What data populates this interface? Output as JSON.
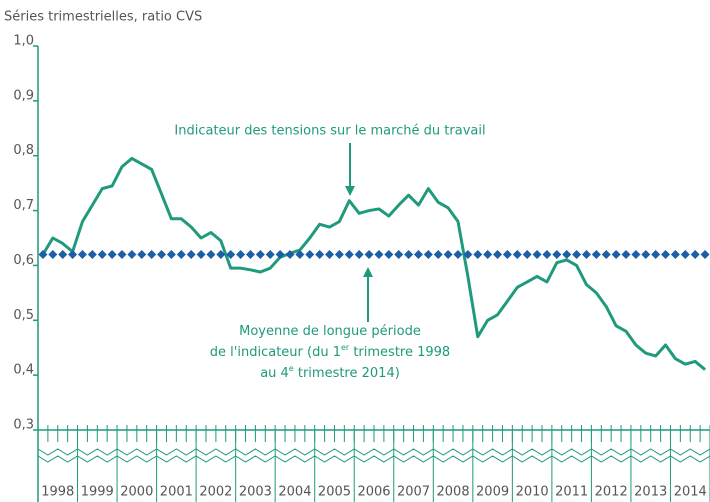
{
  "chart_data": {
    "type": "line",
    "y_axis_title": "Séries trimestrielles, ratio CVS",
    "years": [
      1998,
      1999,
      2000,
      2001,
      2002,
      2003,
      2004,
      2005,
      2006,
      2007,
      2008,
      2009,
      2010,
      2011,
      2012,
      2013,
      2014
    ],
    "ylim": [
      0.3,
      1.0
    ],
    "yticks": [
      {
        "value": 0.3,
        "label": "0,3"
      },
      {
        "value": 0.4,
        "label": "0,4"
      },
      {
        "value": 0.5,
        "label": "0,5"
      },
      {
        "value": 0.6,
        "label": "0,6"
      },
      {
        "value": 0.7,
        "label": "0,7"
      },
      {
        "value": 0.8,
        "label": "0,8"
      },
      {
        "value": 0.9,
        "label": "0,9"
      },
      {
        "value": 1.0,
        "label": "1,0"
      }
    ],
    "series": [
      {
        "style": "line",
        "color": "#1f9a7c",
        "values": [
          0.62,
          0.65,
          0.64,
          0.625,
          0.68,
          0.71,
          0.74,
          0.745,
          0.78,
          0.795,
          0.785,
          0.775,
          0.73,
          0.685,
          0.685,
          0.67,
          0.65,
          0.66,
          0.645,
          0.595,
          0.595,
          0.592,
          0.588,
          0.595,
          0.615,
          0.622,
          0.628,
          0.65,
          0.675,
          0.67,
          0.68,
          0.718,
          0.695,
          0.7,
          0.703,
          0.69,
          0.71,
          0.728,
          0.71,
          0.74,
          0.715,
          0.705,
          0.68,
          0.58,
          0.47,
          0.5,
          0.51,
          0.535,
          0.56,
          0.57,
          0.58,
          0.57,
          0.605,
          0.61,
          0.6,
          0.565,
          0.55,
          0.525,
          0.49,
          0.48,
          0.455,
          0.44,
          0.435,
          0.455,
          0.43,
          0.42,
          0.425,
          0.41
        ]
      },
      {
        "style": "diamond",
        "color": "#1d5fa6",
        "values": [
          0.62,
          0.62,
          0.62,
          0.62,
          0.62,
          0.62,
          0.62,
          0.62,
          0.62,
          0.62,
          0.62,
          0.62,
          0.62,
          0.62,
          0.62,
          0.62,
          0.62,
          0.62,
          0.62,
          0.62,
          0.62,
          0.62,
          0.62,
          0.62,
          0.62,
          0.62,
          0.62,
          0.62,
          0.62,
          0.62,
          0.62,
          0.62,
          0.62,
          0.62,
          0.62,
          0.62,
          0.62,
          0.62,
          0.62,
          0.62,
          0.62,
          0.62,
          0.62,
          0.62,
          0.62,
          0.62,
          0.62,
          0.62,
          0.62,
          0.62,
          0.62,
          0.62,
          0.62,
          0.62,
          0.62,
          0.62,
          0.62,
          0.62,
          0.62,
          0.62,
          0.62,
          0.62,
          0.62,
          0.62,
          0.62,
          0.62,
          0.62,
          0.62
        ]
      }
    ],
    "annotations": [
      {
        "text": "Indicateur des tensions sur le marché du travail"
      },
      {
        "lines": [
          [
            {
              "text": "Moyenne de longue période"
            }
          ],
          [
            {
              "text": "de l'indicateur (du 1"
            },
            {
              "sup": "er"
            },
            {
              "text": " trimestre 1998"
            }
          ],
          [
            {
              "text": "au 4"
            },
            {
              "sup": "e"
            },
            {
              "text": " trimestre 2014)"
            }
          ]
        ]
      }
    ]
  }
}
